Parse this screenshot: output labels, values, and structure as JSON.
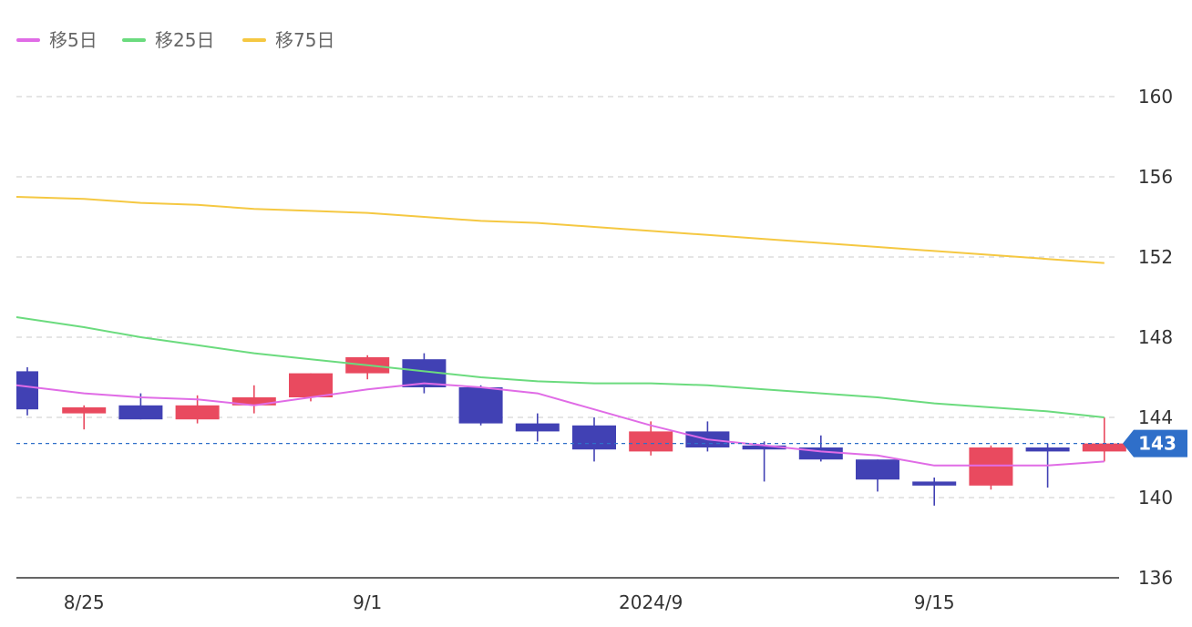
{
  "chart_data": {
    "type": "candlestick",
    "ylim": [
      136,
      160
    ],
    "yticks": [
      "160",
      "156",
      "152",
      "148",
      "144",
      "140",
      "136"
    ],
    "xticks": [
      {
        "label": "8/25",
        "index": 1
      },
      {
        "label": "9/1",
        "index": 6
      },
      {
        "label": "2024/9",
        "index": 11
      },
      {
        "label": "9/15",
        "index": 16
      }
    ],
    "current_price_label": "143",
    "current_price": 142.7,
    "colors": {
      "up": "#e94a5f",
      "down": "#4141b4",
      "ma5": "#e06ce6",
      "ma25": "#6bdb7e",
      "ma75": "#f5c842",
      "price_tag": "#2f6fc9",
      "grid": "#d5d5d5"
    },
    "candles": [
      {
        "open": 146.3,
        "high": 146.5,
        "low": 144.1,
        "close": 144.4
      },
      {
        "open": 144.2,
        "high": 144.6,
        "low": 143.4,
        "close": 144.5
      },
      {
        "open": 144.6,
        "high": 145.2,
        "low": 143.9,
        "close": 143.9
      },
      {
        "open": 143.9,
        "high": 145.1,
        "low": 143.7,
        "close": 144.6
      },
      {
        "open": 144.6,
        "high": 145.6,
        "low": 144.2,
        "close": 145.0
      },
      {
        "open": 145.0,
        "high": 146.2,
        "low": 144.8,
        "close": 146.2
      },
      {
        "open": 146.2,
        "high": 147.1,
        "low": 145.9,
        "close": 147.0
      },
      {
        "open": 146.9,
        "high": 147.2,
        "low": 145.2,
        "close": 145.5
      },
      {
        "open": 145.5,
        "high": 145.6,
        "low": 143.6,
        "close": 143.7
      },
      {
        "open": 143.7,
        "high": 144.2,
        "low": 142.8,
        "close": 143.3
      },
      {
        "open": 143.6,
        "high": 144.0,
        "low": 141.8,
        "close": 142.4
      },
      {
        "open": 142.3,
        "high": 143.8,
        "low": 142.1,
        "close": 143.3
      },
      {
        "open": 143.3,
        "high": 143.8,
        "low": 142.3,
        "close": 142.5
      },
      {
        "open": 142.6,
        "high": 142.8,
        "low": 140.8,
        "close": 142.4
      },
      {
        "open": 142.5,
        "high": 143.1,
        "low": 141.8,
        "close": 141.9
      },
      {
        "open": 141.9,
        "high": 141.9,
        "low": 140.3,
        "close": 140.9
      },
      {
        "open": 140.8,
        "high": 141.0,
        "low": 139.6,
        "close": 140.6
      },
      {
        "open": 140.6,
        "high": 142.6,
        "low": 140.4,
        "close": 142.5
      },
      {
        "open": 142.5,
        "high": 142.7,
        "low": 140.5,
        "close": 142.3
      },
      {
        "open": 142.3,
        "high": 144.0,
        "low": 141.8,
        "close": 142.7
      }
    ],
    "series": [
      {
        "name": "移5日",
        "color": "#e06ce6",
        "values": [
          145.6,
          145.2,
          145.0,
          144.9,
          144.6,
          145.0,
          145.4,
          145.7,
          145.5,
          145.2,
          144.4,
          143.6,
          142.9,
          142.6,
          142.3,
          142.1,
          141.6,
          141.6,
          141.6,
          141.8
        ]
      },
      {
        "name": "移25日",
        "color": "#6bdb7e",
        "values": [
          149.0,
          148.5,
          148.0,
          147.6,
          147.2,
          146.9,
          146.6,
          146.3,
          146.0,
          145.8,
          145.7,
          145.7,
          145.6,
          145.4,
          145.2,
          145.0,
          144.7,
          144.5,
          144.3,
          144.0
        ]
      },
      {
        "name": "移75日",
        "color": "#f5c842",
        "values": [
          155.0,
          154.9,
          154.7,
          154.6,
          154.4,
          154.3,
          154.2,
          154.0,
          153.8,
          153.7,
          153.5,
          153.3,
          153.1,
          152.9,
          152.7,
          152.5,
          152.3,
          152.1,
          151.9,
          151.7
        ]
      }
    ]
  }
}
